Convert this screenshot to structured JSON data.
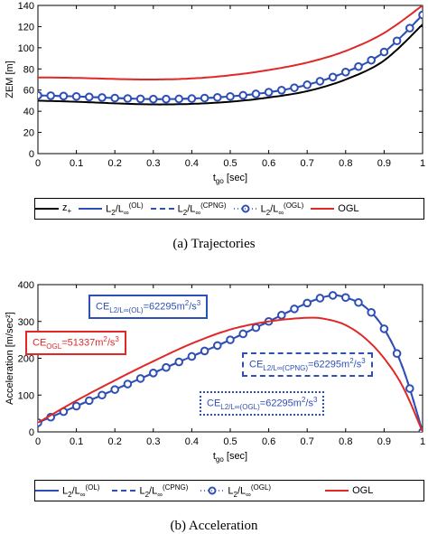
{
  "chart_data": [
    {
      "type": "line",
      "ylabel": "ZEM [m]",
      "xlabel": "t_go [sec]",
      "xlim": [
        0,
        1
      ],
      "ylim": [
        0,
        140
      ],
      "xticks": [
        0,
        0.1,
        0.2,
        0.3,
        0.4,
        0.5,
        0.6,
        0.7,
        0.8,
        0.9,
        1
      ],
      "yticks": [
        0,
        20,
        40,
        60,
        80,
        100,
        120,
        140
      ],
      "grid": false,
      "legend_position": "bottom",
      "series": [
        {
          "name": "z+",
          "color": "#000000",
          "x": [
            0,
            0.1,
            0.2,
            0.3,
            0.4,
            0.5,
            0.6,
            0.7,
            0.8,
            0.9,
            1
          ],
          "y": [
            50,
            49,
            47.5,
            46.5,
            47,
            49,
            53,
            59,
            70,
            88,
            122
          ]
        },
        {
          "name": "L2/L∞(OL)",
          "color": "#2e4fb5",
          "x": [
            0,
            0.1,
            0.2,
            0.3,
            0.4,
            0.5,
            0.6,
            0.7,
            0.8,
            0.9,
            1
          ],
          "y": [
            55,
            54,
            52.5,
            51.5,
            52,
            54,
            58,
            65,
            77,
            96,
            131
          ]
        },
        {
          "name": "L2/L∞(CPNG)",
          "color": "#2e4fb5",
          "x": [
            0,
            0.1,
            0.2,
            0.3,
            0.4,
            0.5,
            0.6,
            0.7,
            0.8,
            0.9,
            1
          ],
          "y": [
            55,
            54,
            52.5,
            51.5,
            52,
            54,
            58,
            65,
            77,
            96,
            131
          ]
        },
        {
          "name": "L2/L∞(OGL)",
          "color": "#2e4fb5",
          "x": [
            0,
            0.1,
            0.2,
            0.3,
            0.4,
            0.5,
            0.6,
            0.7,
            0.8,
            0.9,
            1
          ],
          "y": [
            55,
            54,
            52.5,
            51.5,
            52,
            54,
            58,
            65,
            77,
            96,
            131
          ]
        },
        {
          "name": "OGL",
          "color": "#e02828",
          "x": [
            0,
            0.1,
            0.2,
            0.3,
            0.4,
            0.5,
            0.6,
            0.7,
            0.8,
            0.9,
            1
          ],
          "y": [
            72,
            71.5,
            70.5,
            70,
            71,
            74,
            79,
            86,
            97,
            114,
            140
          ]
        }
      ]
    },
    {
      "type": "line",
      "ylabel": "Acceleration [m/sec²]",
      "xlabel": "t_go [sec]",
      "xlim": [
        0,
        1
      ],
      "ylim": [
        0,
        400
      ],
      "xticks": [
        0,
        0.1,
        0.2,
        0.3,
        0.4,
        0.5,
        0.6,
        0.7,
        0.8,
        0.9,
        1
      ],
      "yticks": [
        0,
        100,
        200,
        300,
        400
      ],
      "grid": false,
      "legend_position": "bottom",
      "series": [
        {
          "name": "L2/L∞(OL)",
          "color": "#2e4fb5",
          "x": [
            0,
            0.1,
            0.2,
            0.3,
            0.4,
            0.5,
            0.6,
            0.7,
            0.76,
            0.8,
            0.85,
            0.9,
            0.95,
            1
          ],
          "y": [
            25,
            70,
            115,
            160,
            205,
            250,
            300,
            350,
            370,
            365,
            340,
            280,
            170,
            0
          ]
        },
        {
          "name": "L2/L∞(CPNG)",
          "color": "#2e4fb5",
          "x": [
            0,
            0.1,
            0.2,
            0.3,
            0.4,
            0.5,
            0.6,
            0.7,
            0.76,
            0.8,
            0.85,
            0.9,
            0.95,
            1
          ],
          "y": [
            25,
            70,
            115,
            160,
            205,
            250,
            300,
            350,
            370,
            365,
            340,
            280,
            170,
            0
          ]
        },
        {
          "name": "L2/L∞(OGL)",
          "color": "#2e4fb5",
          "x": [
            0,
            0.1,
            0.2,
            0.3,
            0.4,
            0.5,
            0.6,
            0.7,
            0.76,
            0.8,
            0.85,
            0.9,
            0.95,
            1
          ],
          "y": [
            25,
            70,
            115,
            160,
            205,
            250,
            300,
            350,
            370,
            365,
            340,
            280,
            170,
            0
          ]
        },
        {
          "name": "OGL",
          "color": "#e02828",
          "x": [
            0,
            0.1,
            0.2,
            0.3,
            0.4,
            0.5,
            0.6,
            0.7,
            0.75,
            0.8,
            0.85,
            0.9,
            0.95,
            1
          ],
          "y": [
            25,
            85,
            140,
            192,
            240,
            278,
            300,
            310,
            306,
            290,
            255,
            200,
            120,
            0
          ]
        }
      ]
    }
  ],
  "captions": {
    "top": "(a)  Trajectories",
    "bottom": "(b)  Acceleration"
  },
  "legend_top": [
    "z+",
    "L2/L∞(OL)",
    "L2/L∞(CPNG)",
    "L2/L∞(OGL)",
    "OGL"
  ],
  "legend_bottom": [
    "L2/L∞(OL)",
    "L2/L∞(CPNG)",
    "L2/L∞(OGL)",
    "OGL"
  ],
  "annotations": {
    "ce_ol": "CE L2/L∞(OL)=62295m²/s³",
    "ce_ogl": "CE OGL=51337m²/s³",
    "ce_cpng": "CE L2/L∞(CPNG)=62295m²/s³",
    "ce_ogl_ref": "CE L2/L∞(OGL)=62295m²/s³"
  },
  "colors": {
    "blue": "#2e4fb5",
    "red": "#e02828",
    "black": "#000000"
  }
}
